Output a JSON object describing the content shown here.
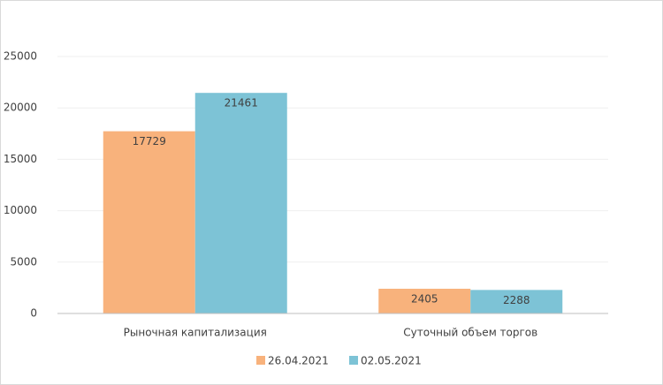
{
  "chart_data": {
    "type": "bar",
    "categories": [
      "Рыночная капитализация",
      "Суточный объем торгов"
    ],
    "series": [
      {
        "name": "26.04.2021",
        "color": "#f8b27c",
        "values": [
          17729,
          2405
        ]
      },
      {
        "name": "02.05.2021",
        "color": "#7dc3d6",
        "values": [
          21461,
          2288
        ]
      }
    ],
    "ylim": [
      0,
      25000
    ],
    "yticks": [
      0,
      5000,
      10000,
      15000,
      20000,
      25000
    ],
    "grid": true,
    "legend": "bottom"
  }
}
